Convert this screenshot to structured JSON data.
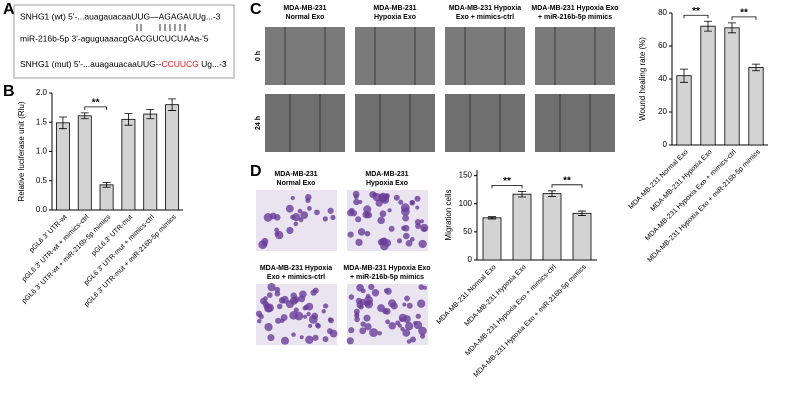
{
  "panel_labels": [
    "A",
    "B",
    "C",
    "D"
  ],
  "sequence_box": {
    "wt": "SNHG1 (wt) 5'-...auagauacaaUUG—AGAGAUUg...-3",
    "mirna": "miR-216b-5p  3'-aguguaaacgGACGUCUCUAAa-'5",
    "mut": [
      "SNHG1 (mut) 5'-...auagauacaaUUG--",
      "CCUUCG",
      "Ug...-3"
    ]
  },
  "wound_images": {
    "columns": [
      [
        "MDA-MB-231",
        "Normal Exo"
      ],
      [
        "MDA-MB-231",
        "Hypoxia Exo"
      ],
      [
        "MDA-MB-231 Hypoxia",
        "Exo + mimics-ctrl"
      ],
      [
        "MDA-MB-231 Hypoxia Exo",
        "+ miR-216b-5p mimics"
      ]
    ],
    "rows": [
      "0 h",
      "24 h"
    ]
  },
  "transwell_images": {
    "labels": [
      [
        "MDA-MB-231",
        "Normal Exo"
      ],
      [
        "MDA-MB-231",
        "Hypoxia Exo"
      ],
      [
        "MDA-MB-231 Hypoxia",
        "Exo + mimics-ctrl"
      ],
      [
        "MDA-MB-231 Hypoxia Exo",
        "+ miR-216b-5p mimics"
      ]
    ]
  },
  "chart_data": [
    {
      "type": "bar",
      "y_label": "Relative luciferase unit (Rlu)",
      "color": "#d3d3d3",
      "categories": [
        "pGL6 3' UTR-wt",
        "pGL6 3' UTR-wt + mimics-ctrl",
        "pGL6 3' UTR-wt + miR-216b-5p mimics",
        "pGL6 3' UTR-mut",
        "pGL6 3' UTR-mut + mimics-ctrl",
        "pGL6 3' UTR-mut + miR-216b-5p mimics"
      ],
      "values": [
        1.49,
        1.61,
        0.43,
        1.55,
        1.64,
        1.8
      ],
      "errors": [
        0.1,
        0.05,
        0.04,
        0.1,
        0.08,
        0.1
      ],
      "ylim": [
        0,
        2
      ],
      "yticks": [
        {
          "value": 0,
          "label": "0.0"
        },
        0.5,
        {
          "value": 1,
          "label": "1.0"
        },
        1.5,
        {
          "value": 2,
          "label": "2.0"
        }
      ],
      "significance": [
        {
          "from": 1,
          "to": 2,
          "label": "**"
        }
      ]
    },
    {
      "type": "bar",
      "y_label": "Wound healing rate (%)",
      "color": "#d3d3d3",
      "categories": [
        "MDA-MB-231 Normal Exo",
        "MDA-MB-231 Hypoxia Exo",
        "MDA-MB-231 Hypoxia Exo + mimics-ctrl",
        "MDA-MB-231 Hypoxia Exo + miR-216b-5p mimics"
      ],
      "values": [
        42,
        72,
        71,
        47
      ],
      "errors": [
        4,
        3,
        3,
        2
      ],
      "ylim": [
        0,
        80
      ],
      "yticks": [
        0,
        20,
        40,
        60,
        80
      ],
      "significance": [
        {
          "from": 0,
          "to": 1,
          "label": "**"
        },
        {
          "from": 2,
          "to": 3,
          "label": "**"
        }
      ]
    },
    {
      "type": "bar",
      "y_label": "Migration cells",
      "color": "#d3d3d3",
      "categories": [
        "MDA-MB-231 Normal Exo",
        "MDA-MB-231 Hypoxia Exo",
        "MDA-MB-231 Hypoxia Exo + mimics-ctrl",
        "MDA-MB-231 Hypoxia Exo + miR-216b-5p mimics"
      ],
      "values": [
        75,
        117,
        118,
        83
      ],
      "errors": [
        2,
        5,
        5,
        4
      ],
      "ylim": [
        0,
        160
      ],
      "yticks": [
        0,
        50,
        100,
        150
      ],
      "significance": [
        {
          "from": 0,
          "to": 1,
          "label": "**"
        },
        {
          "from": 2,
          "to": 3,
          "label": "**"
        }
      ]
    }
  ]
}
